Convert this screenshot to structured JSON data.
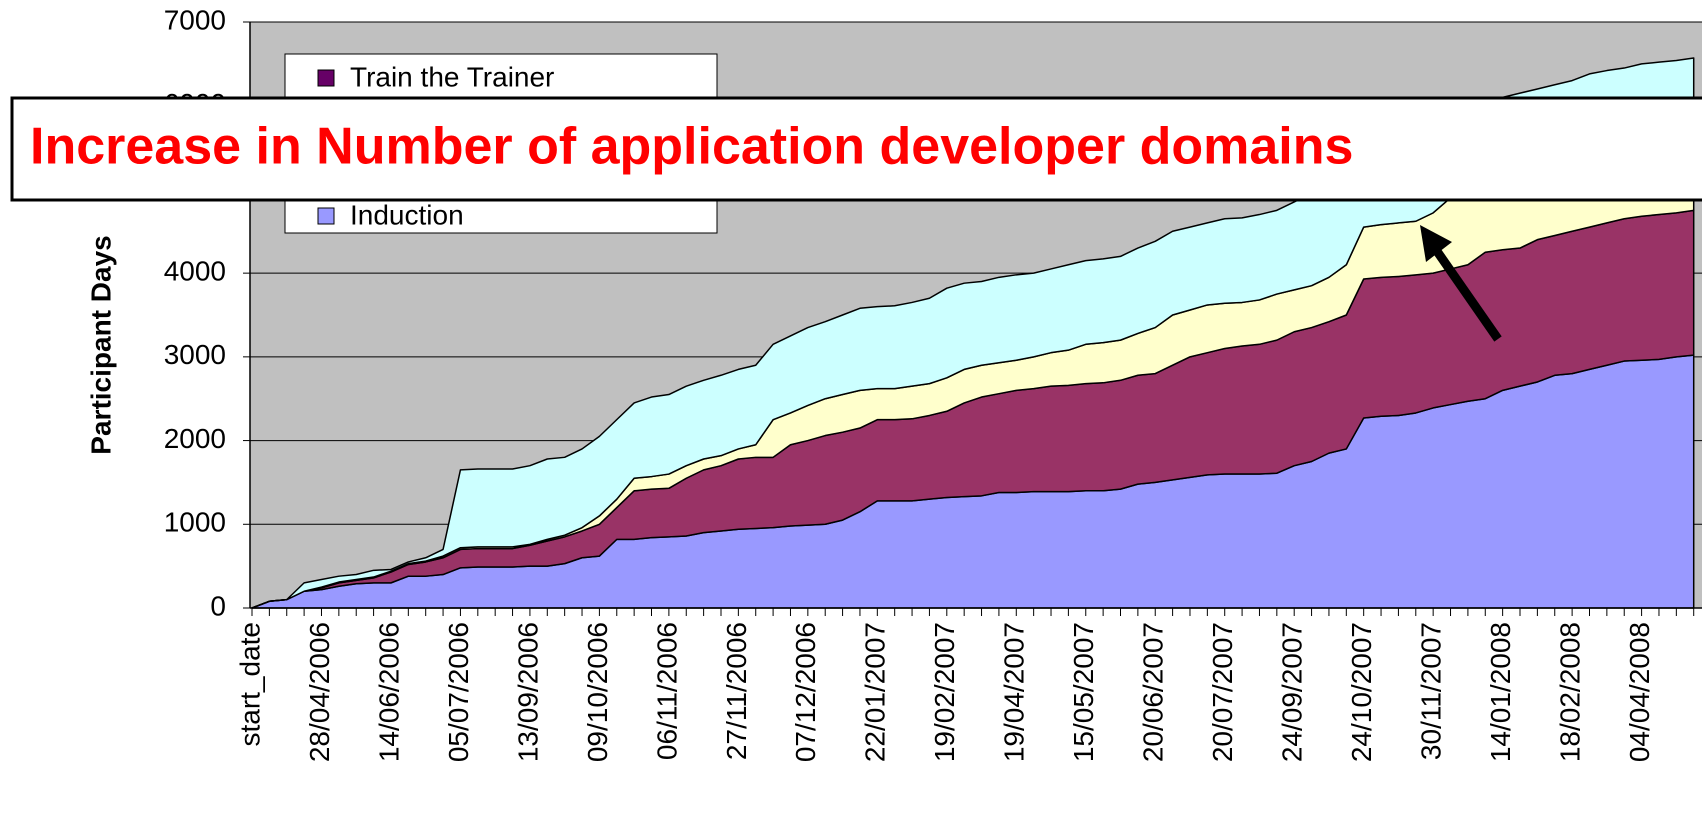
{
  "chart_data": {
    "type": "stacked_area",
    "y_label": "Participant Days",
    "annotation": "Increase in Number of application developer domains",
    "categories": [
      "start_date",
      null,
      null,
      null,
      "28/04/2006",
      null,
      null,
      null,
      "14/06/2006",
      null,
      null,
      null,
      "05/07/2006",
      null,
      null,
      null,
      "13/09/2006",
      null,
      null,
      null,
      "09/10/2006",
      null,
      null,
      null,
      "06/11/2006",
      null,
      null,
      null,
      "27/11/2006",
      null,
      null,
      null,
      "07/12/2006",
      null,
      null,
      null,
      "22/01/2007",
      null,
      null,
      null,
      "19/02/2007",
      null,
      null,
      null,
      "19/04/2007",
      null,
      null,
      null,
      "15/05/2007",
      null,
      null,
      null,
      "20/06/2007",
      null,
      null,
      null,
      "20/07/2007",
      null,
      null,
      null,
      "24/09/2007",
      null,
      null,
      null,
      "24/10/2007",
      null,
      null,
      null,
      "30/11/2007",
      null,
      null,
      null,
      "14/01/2008",
      null,
      null,
      null,
      "18/02/2008",
      null,
      null,
      null,
      "04/04/2008",
      null,
      null,
      null
    ],
    "series": [
      {
        "name": "Induction",
        "color": "#9999ff",
        "values": [
          0,
          80,
          100,
          200,
          220,
          260,
          290,
          300,
          300,
          380,
          380,
          400,
          480,
          490,
          490,
          490,
          500,
          500,
          530,
          600,
          620,
          820,
          820,
          840,
          850,
          860,
          900,
          920,
          940,
          950,
          960,
          980,
          990,
          1000,
          1050,
          1150,
          1280,
          1280,
          1280,
          1300,
          1320,
          1330,
          1340,
          1380,
          1380,
          1390,
          1390,
          1390,
          1400,
          1400,
          1420,
          1480,
          1500,
          1530,
          1560,
          1590,
          1600,
          1600,
          1600,
          1610,
          1700,
          1750,
          1850,
          1900,
          2270,
          2290,
          2300,
          2330,
          2390,
          2430,
          2470,
          2500,
          2600,
          2650,
          2700,
          2780,
          2800,
          2850,
          2900,
          2950,
          2960,
          2970,
          3000,
          3020
        ]
      },
      {
        "color": "#993366",
        "values": [
          0,
          0,
          0,
          0,
          20,
          40,
          40,
          60,
          130,
          140,
          170,
          200,
          220,
          220,
          220,
          220,
          250,
          300,
          320,
          320,
          380,
          380,
          580,
          580,
          580,
          690,
          750,
          780,
          840,
          850,
          840,
          970,
          1010,
          1060,
          1050,
          1000,
          970,
          970,
          980,
          1000,
          1030,
          1120,
          1180,
          1180,
          1220,
          1230,
          1260,
          1270,
          1280,
          1290,
          1300,
          1300,
          1300,
          1370,
          1440,
          1460,
          1500,
          1530,
          1550,
          1590,
          1600,
          1600,
          1570,
          1600,
          1660,
          1660,
          1660,
          1650,
          1610,
          1620,
          1630,
          1750,
          1680,
          1650,
          1700,
          1670,
          1700,
          1700,
          1700,
          1700,
          1720,
          1730,
          1720,
          1730
        ]
      },
      {
        "color": "#ffffcc",
        "values": [
          0,
          0,
          0,
          0,
          10,
          10,
          10,
          10,
          10,
          10,
          10,
          20,
          20,
          20,
          20,
          20,
          10,
          20,
          20,
          40,
          100,
          100,
          150,
          150,
          170,
          150,
          130,
          120,
          120,
          150,
          450,
          380,
          420,
          440,
          450,
          450,
          370,
          370,
          390,
          380,
          400,
          400,
          380,
          370,
          360,
          380,
          400,
          420,
          470,
          480,
          480,
          500,
          550,
          600,
          560,
          570,
          540,
          520,
          530,
          550,
          500,
          500,
          530,
          600,
          620,
          630,
          640,
          640,
          720,
          850,
          900,
          800,
          820,
          850,
          800,
          800,
          800,
          800,
          800,
          800,
          800,
          800,
          830,
          850
        ]
      },
      {
        "name": "Train the Trainer",
        "color": "#ccffff",
        "legend_color": "#660066",
        "values": [
          0,
          0,
          0,
          100,
          90,
          70,
          60,
          80,
          20,
          20,
          40,
          80,
          930,
          930,
          930,
          930,
          940,
          960,
          930,
          940,
          950,
          950,
          900,
          950,
          950,
          950,
          940,
          960,
          950,
          950,
          900,
          920,
          930,
          920,
          950,
          980,
          980,
          990,
          1000,
          1020,
          1070,
          1030,
          1000,
          1020,
          1020,
          1000,
          1000,
          1020,
          1000,
          1000,
          1000,
          1020,
          1030,
          1000,
          990,
          980,
          1010,
          1010,
          1020,
          1000,
          1050,
          1100,
          1100,
          1100,
          850,
          970,
          1050,
          1130,
          1130,
          1050,
          1000,
          1000,
          1000,
          1000,
          1000,
          1000,
          1000,
          1030,
          1020,
          1000,
          1020,
          1020,
          990,
          970
        ]
      }
    ],
    "ylim": [
      0,
      7000
    ],
    "yticks": [
      0,
      1000,
      2000,
      3000,
      4000,
      5000,
      6000,
      7000
    ],
    "grid": true,
    "background": "#c0c0c0"
  }
}
